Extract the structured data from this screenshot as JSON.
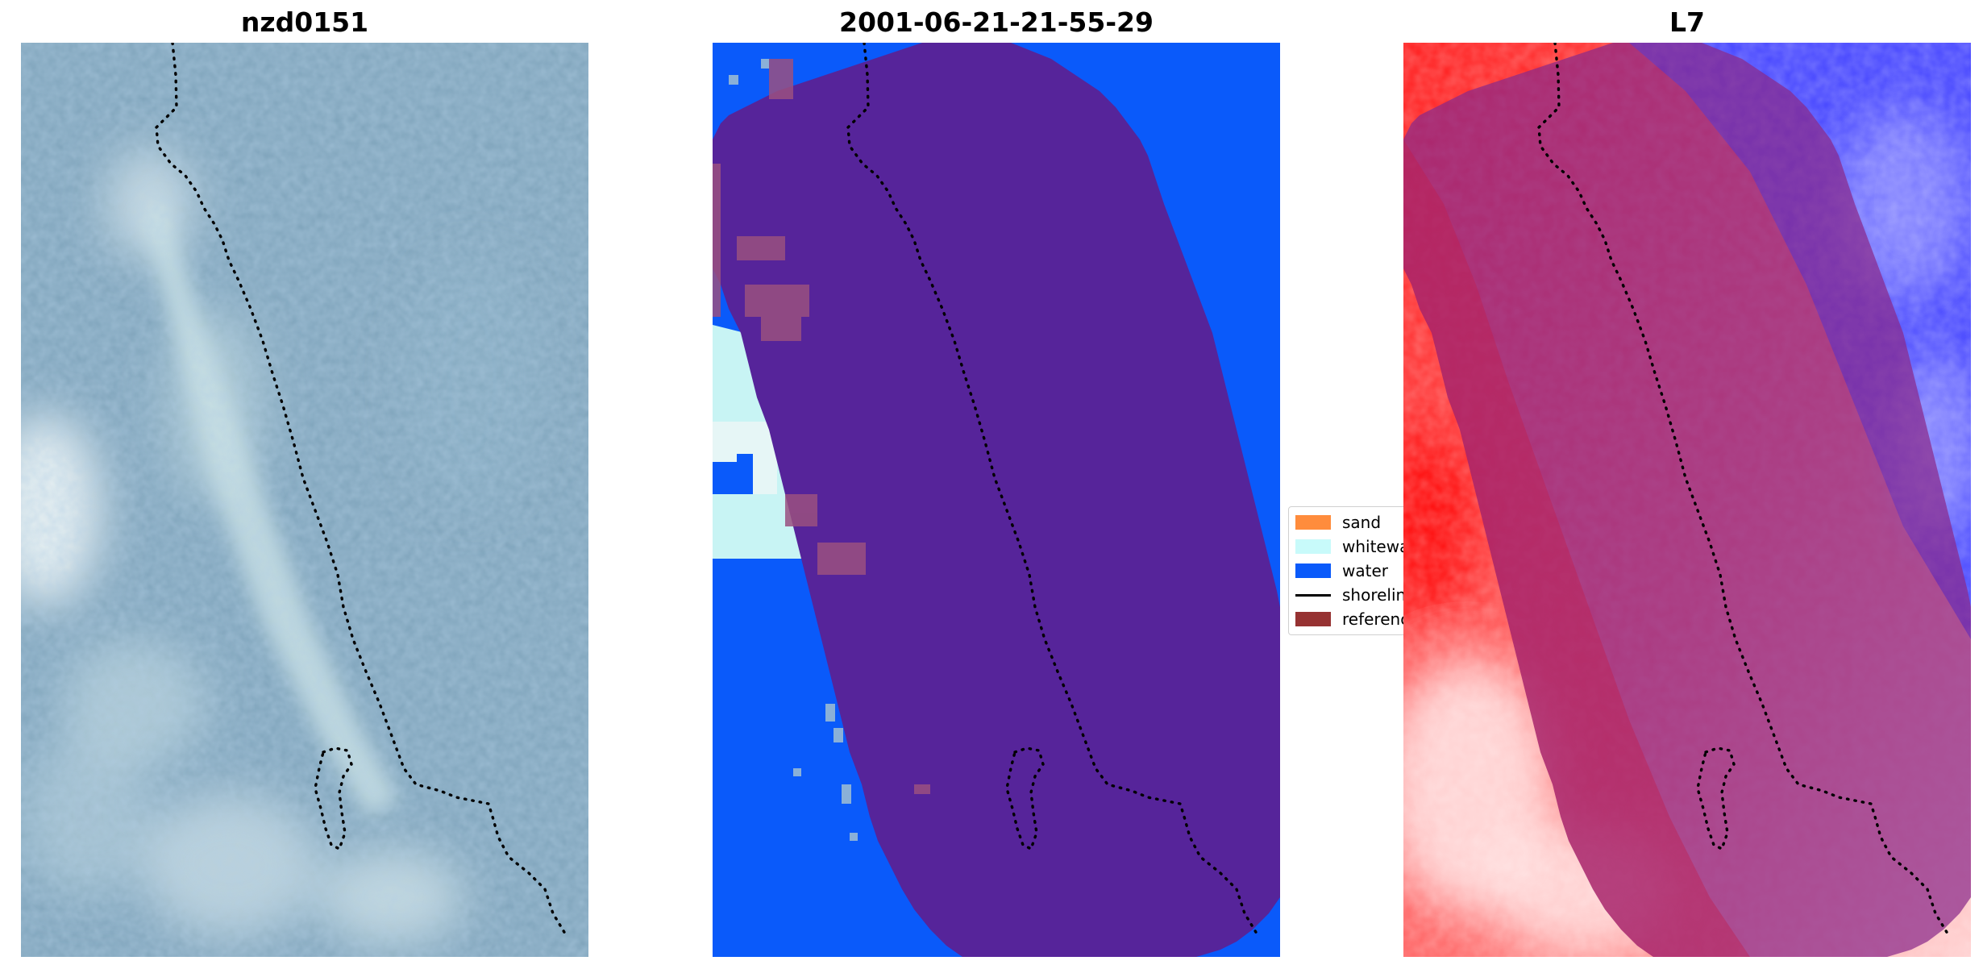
{
  "panels": [
    {
      "title": "nzd0151"
    },
    {
      "title": "2001-06-21-21-55-29"
    },
    {
      "title": "L7"
    }
  ],
  "legend": {
    "items": [
      {
        "label": "sand",
        "color": "#ff8c3c",
        "kind": "patch"
      },
      {
        "label": "whitewater",
        "color": "#c8fafa",
        "kind": "patch"
      },
      {
        "label": "water",
        "color": "#0a5afa",
        "kind": "patch"
      },
      {
        "label": "shoreline",
        "color": "#000000",
        "kind": "line"
      },
      {
        "label": "reference",
        "color": "#963232",
        "kind": "patch"
      }
    ]
  },
  "colors": {
    "water": "#0a5afa",
    "buffer_overlay": "#56249a",
    "whitewater": "#c8fafa",
    "reference_overlay": "#7a3a8a",
    "rgb_base": "#7fa4bb",
    "l7_red": "#ff1e1e",
    "l7_blue": "#4a4aff",
    "l7_buffer": "#a0307a"
  }
}
